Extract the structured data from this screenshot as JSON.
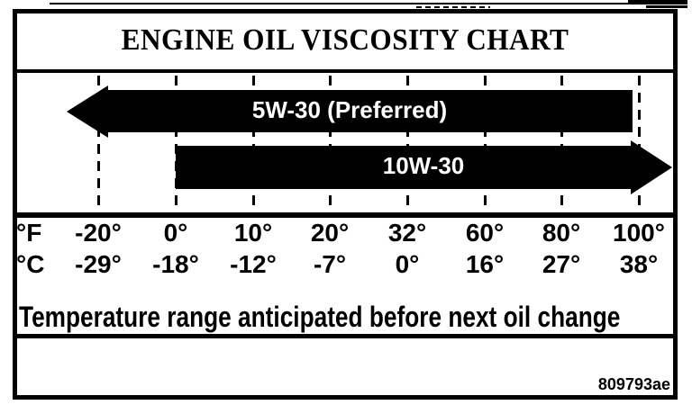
{
  "title": "ENGINE OIL VISCOSITY CHART",
  "caption": "Temperature range anticipated before next oil change",
  "figure_code": "809793ae",
  "colors": {
    "ink": "#000000",
    "paper": "#ffffff",
    "bar_fill": "#000000",
    "bar_text": "#ffffff"
  },
  "chart_data": {
    "type": "bar",
    "orientation": "horizontal-range",
    "title": "ENGINE OIL VISCOSITY CHART",
    "grid": "dashed-vertical-at-each-tick",
    "axis": {
      "unit_rows": [
        {
          "unit": "°F",
          "ticks": [
            "-20°",
            "0°",
            "10°",
            "20°",
            "32°",
            "60°",
            "80°",
            "100°"
          ]
        },
        {
          "unit": "°C",
          "ticks": [
            "-29°",
            "-18°",
            "-12°",
            "-7°",
            "0°",
            "16°",
            "27°",
            "38°"
          ]
        }
      ]
    },
    "series": [
      {
        "label": "5W-30 (Preferred)",
        "from_f": "below -20",
        "to_f": 100,
        "arrow": "left"
      },
      {
        "label": "10W-30",
        "from_f": 0,
        "to_f": "above 100",
        "arrow": "right"
      }
    ],
    "footnote": "Temperature range anticticipated before next oil change",
    "footnote_text": "Temperature range anticipated before next oil change"
  }
}
